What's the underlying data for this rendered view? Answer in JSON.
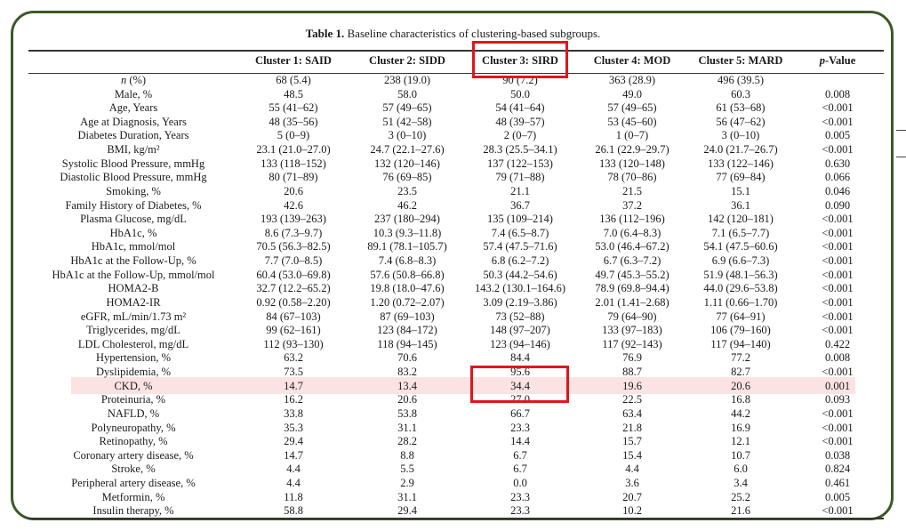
{
  "caption": {
    "label": "Table 1.",
    "text": "Baseline characteristics of clustering-based subgroups."
  },
  "columns": [
    "Cluster 1: SAID",
    "Cluster 2: SIDD",
    "Cluster 3: SIRD",
    "Cluster 4: MOD",
    "Cluster 5: MARD",
    "-Value"
  ],
  "pvalue_prefix": "p",
  "rows": [
    {
      "label": "n (%)",
      "values": [
        "68 (5.4)",
        "238 (19.0)",
        "90 (7.2)",
        "363 (28.9)",
        "496 (39.5)",
        ""
      ]
    },
    {
      "label": "Male, %",
      "values": [
        "48.5",
        "58.0",
        "50.0",
        "49.0",
        "60.3",
        "0.008"
      ]
    },
    {
      "label": "Age, Years",
      "values": [
        "55 (41–62)",
        "57 (49–65)",
        "54 (41–64)",
        "57 (49–65)",
        "61 (53–68)",
        "<0.001"
      ]
    },
    {
      "label": "Age at Diagnosis, Years",
      "values": [
        "48 (35–56)",
        "51 (42–58)",
        "48 (39–57)",
        "53 (45–60)",
        "56 (47–62)",
        "<0.001"
      ]
    },
    {
      "label": "Diabetes Duration, Years",
      "values": [
        "5 (0–9)",
        "3 (0–10)",
        "2 (0–7)",
        "1 (0–7)",
        "3 (0–10)",
        "0.005"
      ]
    },
    {
      "label": "BMI, kg/m²",
      "values": [
        "23.1 (21.0–27.0)",
        "24.7 (22.1–27.6)",
        "28.3 (25.5–34.1)",
        "26.1 (22.9–29.7)",
        "24.0 (21.7–26.7)",
        "<0.001"
      ]
    },
    {
      "label": "Systolic Blood Pressure, mmHg",
      "values": [
        "133 (118–152)",
        "132 (120–146)",
        "137 (122–153)",
        "133 (120–148)",
        "133 (122–146)",
        "0.630"
      ]
    },
    {
      "label": "Diastolic Blood Pressure, mmHg",
      "values": [
        "80 (71–89)",
        "76 (69–85)",
        "79 (71–88)",
        "78 (70–86)",
        "77 (69–84)",
        "0.066"
      ]
    },
    {
      "label": "Smoking, %",
      "values": [
        "20.6",
        "23.5",
        "21.1",
        "21.5",
        "15.1",
        "0.046"
      ]
    },
    {
      "label": "Family History of Diabetes, %",
      "values": [
        "42.6",
        "46.2",
        "36.7",
        "37.2",
        "36.1",
        "0.090"
      ]
    },
    {
      "label": "Plasma Glucose, mg/dL",
      "values": [
        "193 (139–263)",
        "237 (180–294)",
        "135 (109–214)",
        "136 (112–196)",
        "142 (120–181)",
        "<0.001"
      ]
    },
    {
      "label": "HbA1c, %",
      "values": [
        "8.6 (7.3–9.7)",
        "10.3 (9.3–11.8)",
        "7.4 (6.5–8.7)",
        "7.0 (6.4–8.3)",
        "7.1 (6.5–7.7)",
        "<0.001"
      ]
    },
    {
      "label": "HbA1c, mmol/mol",
      "values": [
        "70.5 (56.3–82.5)",
        "89.1 (78.1–105.7)",
        "57.4 (47.5–71.6)",
        "53.0 (46.4–67.2)",
        "54.1 (47.5–60.6)",
        "<0.001"
      ]
    },
    {
      "label": "HbA1c at the Follow-Up, %",
      "values": [
        "7.7 (7.0–8.5)",
        "7.4 (6.8–8.3)",
        "6.8 (6.2–7.2)",
        "6.7 (6.3–7.2)",
        "6.9 (6.6–7.3)",
        "<0.001"
      ]
    },
    {
      "label": "HbA1c at the Follow-Up, mmol/mol",
      "values": [
        "60.4 (53.0–69.8)",
        "57.6 (50.8–66.8)",
        "50.3 (44.2–54.6)",
        "49.7 (45.3–55.2)",
        "51.9 (48.1–56.3)",
        "<0.001"
      ]
    },
    {
      "label": "HOMA2-B",
      "values": [
        "32.7 (12.2–65.2)",
        "19.8 (18.0–47.6)",
        "143.2 (130.1–164.6)",
        "78.9 (69.8–94.4)",
        "44.0 (29.6–53.8)",
        "<0.001"
      ]
    },
    {
      "label": "HOMA2-IR",
      "values": [
        "0.92 (0.58–2.20)",
        "1.20 (0.72–2.07)",
        "3.09 (2.19–3.86)",
        "2.01 (1.41–2.68)",
        "1.11 (0.66–1.70)",
        "<0.001"
      ]
    },
    {
      "label": "eGFR, mL/min/1.73 m²",
      "values": [
        "84 (67–103)",
        "87 (69–103)",
        "73 (52–88)",
        "79 (64–90)",
        "77 (64–91)",
        "<0.001"
      ]
    },
    {
      "label": "Triglycerides, mg/dL",
      "values": [
        "99 (62–161)",
        "123 (84–172)",
        "148 (97–207)",
        "133 (97–183)",
        "106 (79–160)",
        "<0.001"
      ]
    },
    {
      "label": "LDL Cholesterol, mg/dL",
      "values": [
        "112 (93–130)",
        "118 (94–145)",
        "123 (94–146)",
        "117 (92–143)",
        "117 (94–140)",
        "0.422"
      ]
    },
    {
      "label": "Hypertension, %",
      "values": [
        "63.2",
        "70.6",
        "84.4",
        "76.9",
        "77.2",
        "0.008"
      ]
    },
    {
      "label": "Dyslipidemia, %",
      "values": [
        "73.5",
        "83.2",
        "95.6",
        "88.7",
        "82.7",
        "<0.001"
      ]
    },
    {
      "label": "CKD, %",
      "values": [
        "14.7",
        "13.4",
        "34.4",
        "19.6",
        "20.6",
        "0.001"
      ]
    },
    {
      "label": "Proteinuria, %",
      "values": [
        "16.2",
        "20.6",
        "27.0",
        "22.5",
        "16.8",
        "0.093"
      ]
    },
    {
      "label": "NAFLD, %",
      "values": [
        "33.8",
        "53.8",
        "66.7",
        "63.4",
        "44.2",
        "<0.001"
      ]
    },
    {
      "label": "Polyneuropathy, %",
      "values": [
        "35.3",
        "31.1",
        "23.3",
        "21.8",
        "16.9",
        "<0.001"
      ]
    },
    {
      "label": "Retinopathy, %",
      "values": [
        "29.4",
        "28.2",
        "14.4",
        "15.7",
        "12.1",
        "<0.001"
      ]
    },
    {
      "label": "Coronary artery disease, %",
      "values": [
        "14.7",
        "8.8",
        "6.7",
        "15.4",
        "10.7",
        "0.038"
      ]
    },
    {
      "label": "Stroke, %",
      "values": [
        "4.4",
        "5.5",
        "6.7",
        "4.4",
        "6.0",
        "0.824"
      ]
    },
    {
      "label": "Peripheral artery disease, %",
      "values": [
        "4.4",
        "2.9",
        "0.0",
        "3.6",
        "3.4",
        "0.461"
      ]
    },
    {
      "label": "Metformin, %",
      "values": [
        "11.8",
        "31.1",
        "23.3",
        "20.7",
        "25.2",
        "0.005"
      ]
    },
    {
      "label": "Insulin therapy, %",
      "values": [
        "58.8",
        "29.4",
        "23.3",
        "10.2",
        "21.6",
        "<0.001"
      ]
    }
  ],
  "highlighted_row": "CKD, %",
  "colors": {
    "frame": "#3b5a26",
    "highlight_box": "#e0161b",
    "row_highlight": "#fbe3e3"
  }
}
